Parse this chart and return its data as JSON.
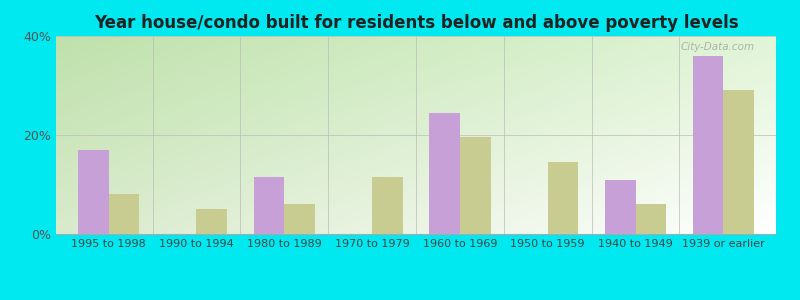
{
  "title": "Year house/condo built for residents below and above poverty levels",
  "categories": [
    "1995 to 1998",
    "1990 to 1994",
    "1980 to 1989",
    "1970 to 1979",
    "1960 to 1969",
    "1950 to 1959",
    "1940 to 1949",
    "1939 or earlier"
  ],
  "below_poverty": [
    17.0,
    0.0,
    11.5,
    0.0,
    24.5,
    0.0,
    11.0,
    36.0
  ],
  "above_poverty": [
    8.0,
    5.0,
    6.0,
    11.5,
    19.5,
    14.5,
    6.0,
    29.0
  ],
  "below_color": "#c8a0d8",
  "above_color": "#c8cc90",
  "ylim": [
    0,
    40
  ],
  "yticks": [
    0,
    20,
    40
  ],
  "ytick_labels": [
    "0%",
    "20%",
    "40%"
  ],
  "bar_width": 0.35,
  "outer_background": "#00e8f0",
  "watermark": "City-Data.com"
}
